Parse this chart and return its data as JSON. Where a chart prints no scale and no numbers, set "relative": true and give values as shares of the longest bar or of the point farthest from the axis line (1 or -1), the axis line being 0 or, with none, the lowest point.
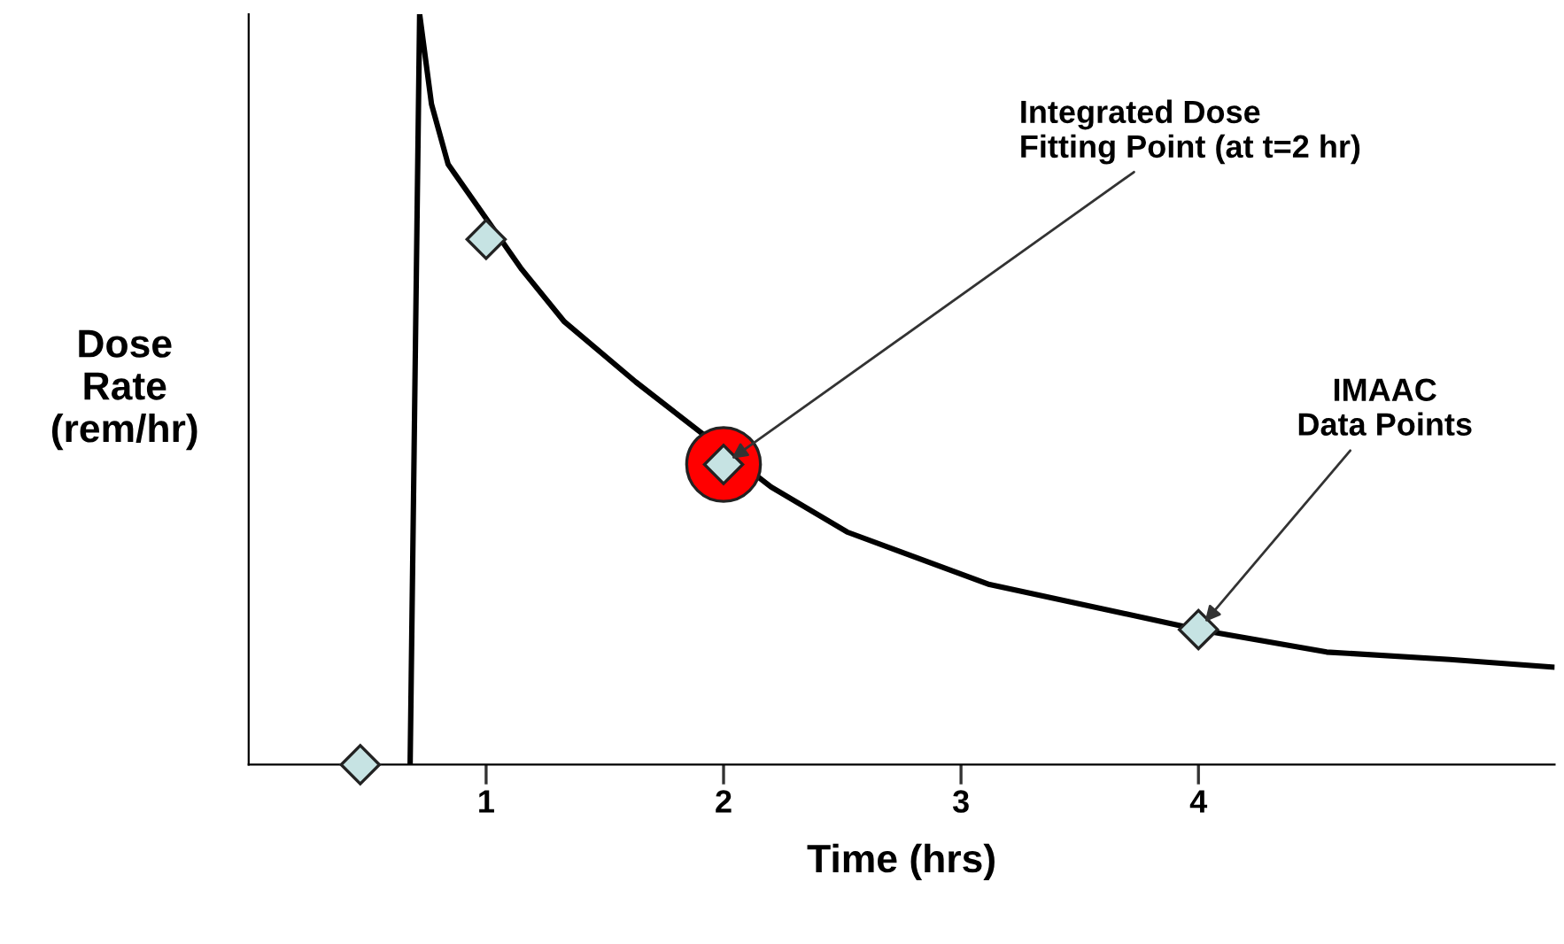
{
  "chart_data": {
    "type": "line",
    "relative": true,
    "xlabel": "Time (hrs)",
    "ylabel": "Dose\nRate\n(rem/hr)",
    "xlim": [
      0,
      5.5
    ],
    "xticks": [
      1,
      2,
      3,
      4
    ],
    "grid": false,
    "legend": false,
    "series": [
      {
        "type": "line",
        "color": "#000000",
        "marker": "none",
        "x": [
          0.68,
          0.72,
          0.77,
          0.84,
          1.15,
          1.33,
          1.63,
          2.2,
          2.52,
          3.12,
          4.0,
          4.54,
          5.06,
          5.49
        ],
        "values": [
          0,
          1,
          0.88,
          0.8,
          0.66,
          0.59,
          0.51,
          0.37,
          0.31,
          0.24,
          0.18,
          0.15,
          0.14,
          0.13
        ]
      },
      {
        "type": "scatter",
        "color": "#ff0000",
        "marker": "circle",
        "x": [
          2
        ],
        "values": [
          0.4
        ]
      },
      {
        "type": "scatter",
        "color": "#c6e3e3",
        "marker": "diamond",
        "x": [
          0.47,
          1.0,
          2.0,
          4.0
        ],
        "values": [
          0,
          0.7,
          0.4,
          0.18
        ]
      }
    ],
    "annotations": [
      {
        "text": "Integrated Dose\nFitting Point (at t=2 hr)",
        "x": 2,
        "y": 0.4
      },
      {
        "text": "IMAAC\nData Points",
        "x": 4,
        "y": 0.18
      }
    ]
  }
}
